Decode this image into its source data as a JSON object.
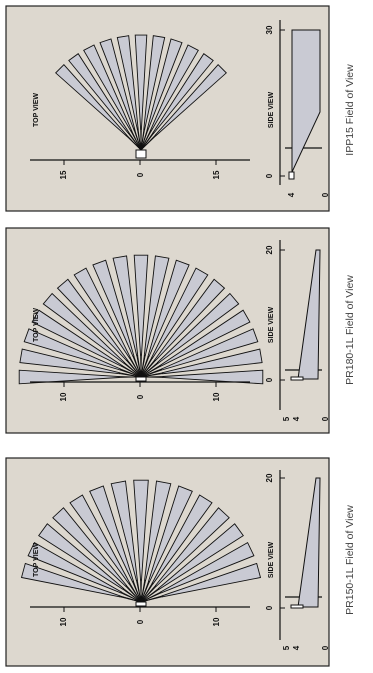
{
  "colors": {
    "background": "#ffffff",
    "panel": "#ddd8cf",
    "panel_border": "#222222",
    "zone_fill": "#c9cad3",
    "line": "#111111",
    "caption": "#444444"
  },
  "panels": [
    {
      "id": "ipp15",
      "caption": "IPP15 Field of View",
      "top_view": {
        "label": "TOP VIEW",
        "range_ticks": [
          "15",
          "0",
          "15"
        ],
        "zone_count": 11,
        "spread_deg": 90,
        "max_range": 15
      },
      "side_view": {
        "label": "SIDE VIEW",
        "height_ticks": [
          "4",
          "0"
        ],
        "range_ticks": [
          "0",
          "30"
        ],
        "max_range": 30
      }
    },
    {
      "id": "pr180",
      "caption": "PR180-1L Field of View",
      "top_view": {
        "label": "TOP VIEW",
        "range_ticks": [
          "10",
          "0",
          "10"
        ],
        "zone_count": 19,
        "spread_deg": 180,
        "max_range": 10
      },
      "side_view": {
        "label": "SIDE VIEW",
        "height_ticks": [
          "5",
          "4",
          "0"
        ],
        "range_ticks": [
          "0",
          "20"
        ],
        "max_range": 20
      }
    },
    {
      "id": "pr150",
      "caption": "PR150-1L Field of View",
      "top_view": {
        "label": "TOP VIEW",
        "range_ticks": [
          "10",
          "0",
          "10"
        ],
        "zone_count": 15,
        "spread_deg": 150,
        "max_range": 10
      },
      "side_view": {
        "label": "SIDE VIEW",
        "height_ticks": [
          "5",
          "4",
          "0"
        ],
        "range_ticks": [
          "0",
          "20"
        ],
        "max_range": 20
      }
    }
  ]
}
